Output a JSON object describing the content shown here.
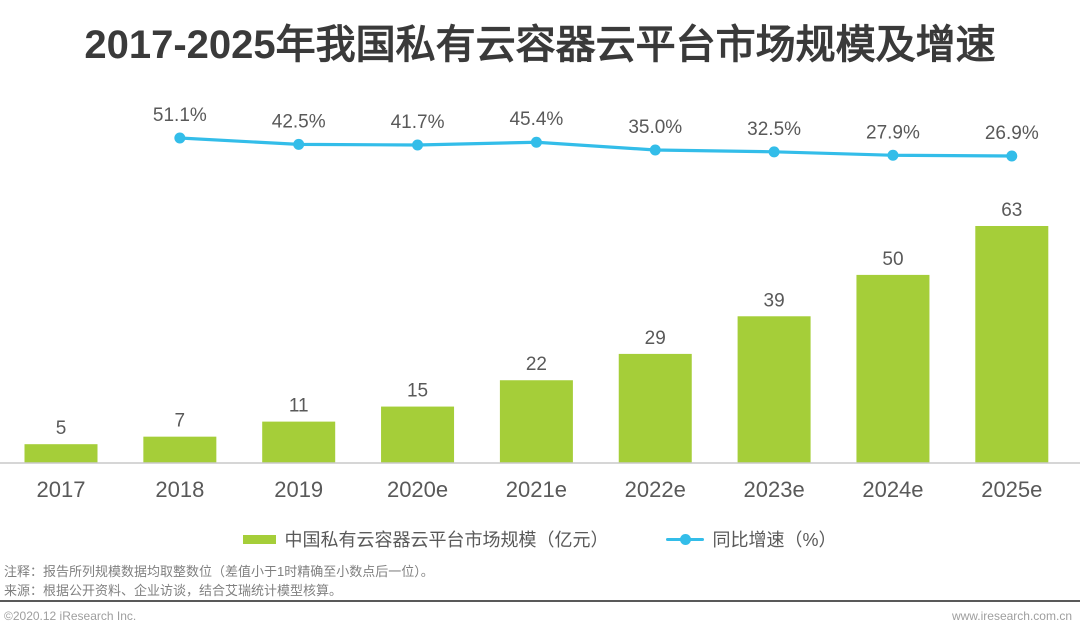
{
  "title": "2017-2025年我国私有云容器云平台市场规模及增速",
  "chart_data": {
    "type": "bar",
    "title": "2017-2025年我国私有云容器云平台市场规模及增速",
    "categories": [
      "2017",
      "2018",
      "2019",
      "2020e",
      "2021e",
      "2022e",
      "2023e",
      "2024e",
      "2025e"
    ],
    "series": [
      {
        "name": "中国私有云容器云平台市场规模（亿元）",
        "type": "bar",
        "values": [
          5,
          7,
          11,
          15,
          22,
          29,
          39,
          50,
          63
        ]
      },
      {
        "name": "同比增速（%）",
        "type": "line",
        "values": [
          null,
          51.1,
          42.5,
          41.7,
          45.4,
          35.0,
          32.5,
          27.9,
          26.9
        ],
        "labels": [
          "",
          "51.1%",
          "42.5%",
          "41.7%",
          "45.4%",
          "35.0%",
          "32.5%",
          "27.9%",
          "26.9%"
        ]
      }
    ],
    "xlabel": "",
    "ylabel": "",
    "ylim": [
      0,
      70
    ],
    "grid": false,
    "legend_position": "bottom",
    "data_labels": true
  },
  "legend": {
    "market_label": "中国私有云容器云平台市场规模（亿元）",
    "growth_label": "同比增速（%）"
  },
  "notes": {
    "note1": "注释：报告所列规模数据均取整数位（差值小于1时精确至小数点后一位）。",
    "note2": "来源：根据公开资料、企业访谈，结合艾瑞统计模型核算。"
  },
  "footer": {
    "copyright": "©2020.12 iResearch Inc.",
    "website": "www.iresearch.com.cn"
  },
  "colors": {
    "bar": "#A5CE39",
    "line": "#33BDE9",
    "title_text": "#3A3A3A",
    "label_text": "#595959",
    "axis_line": "#C9C9C9",
    "note_text": "#808080",
    "footer_text": "#9E9E9E",
    "divider": "#595959"
  }
}
